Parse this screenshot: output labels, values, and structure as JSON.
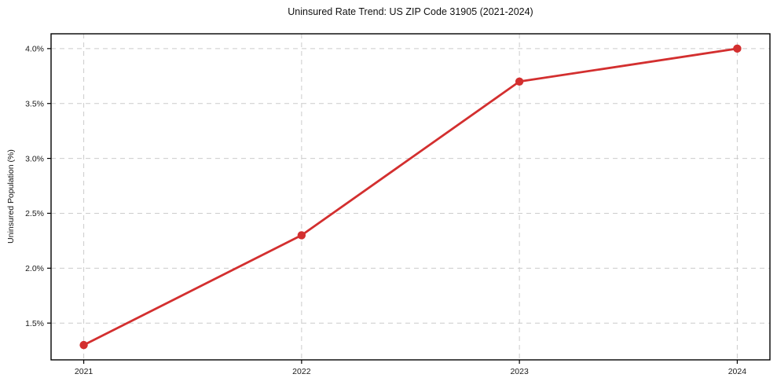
{
  "chart_data": {
    "type": "line",
    "title": "Uninsured Rate Trend: US ZIP Code 31905 (2021-2024)",
    "xlabel": "",
    "ylabel": "Uninsured Population (%)",
    "x": [
      2021,
      2022,
      2023,
      2024
    ],
    "values": [
      1.3,
      2.3,
      3.7,
      4.0
    ],
    "xticks": [
      {
        "value": 2021,
        "label": "2021"
      },
      {
        "value": 2022,
        "label": "2022"
      },
      {
        "value": 2023,
        "label": "2023"
      },
      {
        "value": 2024,
        "label": "2024"
      }
    ],
    "yticks": [
      {
        "value": 1.5,
        "label": "1.5%"
      },
      {
        "value": 2.0,
        "label": "2.0%"
      },
      {
        "value": 2.5,
        "label": "2.5%"
      },
      {
        "value": 3.0,
        "label": "3.0%"
      },
      {
        "value": 3.5,
        "label": "3.5%"
      },
      {
        "value": 4.0,
        "label": "4.0%"
      }
    ],
    "xlim": [
      2020.85,
      2024.15
    ],
    "ylim": [
      1.165,
      4.135
    ],
    "grid": true,
    "grid_style": "dashed",
    "legend_position": "none",
    "line_color": "#d32f2f",
    "marker": "circle",
    "grid_color": "#cccccc",
    "spine_color": "#000000"
  }
}
